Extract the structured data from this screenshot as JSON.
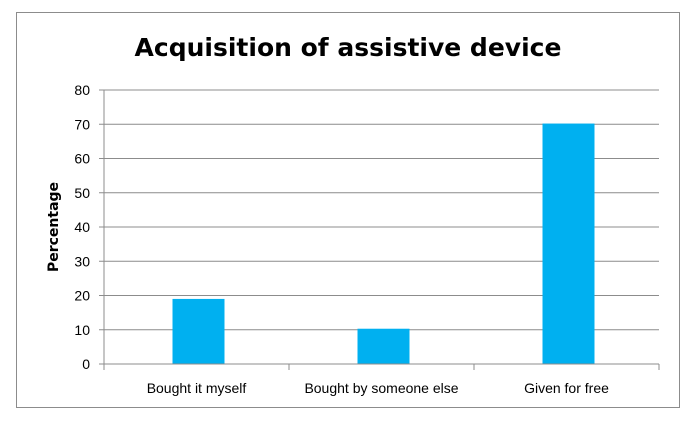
{
  "chart_data": {
    "type": "bar",
    "title": "Acquisition of assistive device",
    "xlabel": "",
    "ylabel": "Percentage",
    "categories": [
      "Bought it myself",
      "Bought by someone else",
      "Given for free"
    ],
    "values": [
      19,
      10.3,
      70.2
    ],
    "ylim": [
      0,
      80
    ],
    "yticks": [
      "0",
      "10",
      "20",
      "30",
      "40",
      "50",
      "60",
      "70",
      "80"
    ],
    "grid": true,
    "legend": "none",
    "bar_color": "#00B0F0"
  }
}
